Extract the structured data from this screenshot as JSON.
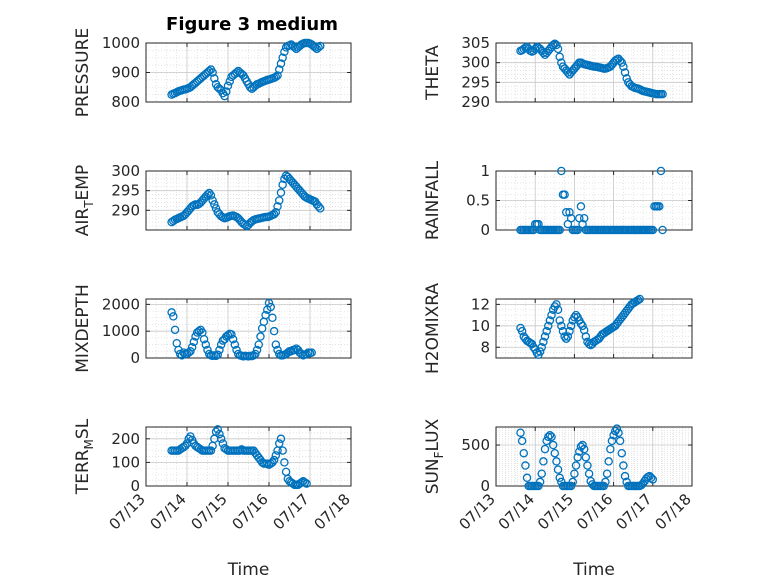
{
  "title": "Figure 3 medium",
  "xlabel": "Time",
  "date_ticks": [
    "07/13",
    "07/14",
    "07/15",
    "07/16",
    "07/17",
    "07/18"
  ],
  "marker_color": "#0072BD",
  "chart_data": [
    {
      "type": "scatter",
      "id": "pressure",
      "ylabel": "PRESSURE",
      "ylim": [
        800,
        1000
      ],
      "yticks": [
        800,
        900,
        1000
      ],
      "xlim": [
        "07/13",
        "07/18"
      ],
      "x_start": "07/13 15:00",
      "x_step_hours": 1,
      "values": [
        825,
        828,
        830,
        833,
        836,
        838,
        840,
        842,
        843,
        845,
        847,
        850,
        855,
        860,
        865,
        870,
        875,
        880,
        885,
        890,
        895,
        900,
        905,
        910,
        900,
        880,
        860,
        850,
        845,
        840,
        830,
        820,
        835,
        855,
        870,
        885,
        890,
        895,
        900,
        905,
        900,
        895,
        890,
        880,
        870,
        860,
        850,
        845,
        850,
        855,
        860,
        862,
        865,
        868,
        870,
        872,
        875,
        876,
        878,
        880,
        882,
        885,
        890,
        910,
        930,
        950,
        970,
        985,
        990,
        992,
        995,
        990,
        985,
        980,
        985,
        990,
        995,
        998,
        1000,
        1000,
        1000,
        998,
        995,
        990,
        985,
        980,
        985,
        990
      ]
    },
    {
      "type": "scatter",
      "id": "theta",
      "ylabel": "THETA",
      "ylim": [
        290,
        305
      ],
      "yticks": [
        290,
        295,
        300,
        305
      ],
      "xlim": [
        "07/13",
        "07/18"
      ],
      "x_start": "07/13 15:00",
      "x_step_hours": 1,
      "values": [
        303,
        303.2,
        303.5,
        303.8,
        304,
        303.5,
        303,
        302.8,
        303,
        303.5,
        304,
        303.8,
        303.5,
        303,
        302.5,
        302,
        302.5,
        303,
        303.5,
        304,
        304.5,
        304.8,
        304.5,
        303.5,
        301.5,
        300,
        299,
        298.5,
        298,
        297.5,
        297,
        297.5,
        298,
        298.5,
        299,
        299.5,
        300,
        300,
        299.8,
        299.6,
        299.5,
        299.4,
        299.3,
        299.2,
        299.1,
        299,
        299,
        298.9,
        298.8,
        298.7,
        298.6,
        298.5,
        298.5,
        298.6,
        298.8,
        299,
        299.5,
        300,
        300.5,
        300.8,
        301,
        300.5,
        300,
        299,
        297.5,
        296,
        295,
        294.5,
        294,
        293.8,
        293.6,
        293.5,
        293.4,
        293.2,
        293,
        292.8,
        292.7,
        292.6,
        292.5,
        292.4,
        292.3,
        292.2,
        292.1,
        292,
        292,
        292,
        292,
        292
      ]
    },
    {
      "type": "scatter",
      "id": "air_temp",
      "ylabel": "AIR_TEMP",
      "ylim": [
        285,
        300
      ],
      "yticks": [
        290,
        295,
        300
      ],
      "xlim": [
        "07/13",
        "07/18"
      ],
      "x_start": "07/13 15:00",
      "x_step_hours": 1,
      "values": [
        287,
        287.3,
        287.6,
        287.8,
        288,
        288.2,
        288.4,
        288.6,
        289,
        289.5,
        290,
        290.5,
        291,
        291.3,
        291.5,
        291.4,
        291.6,
        292,
        292.5,
        293,
        293.5,
        294,
        294.4,
        293.8,
        292.5,
        291.5,
        290.5,
        289.5,
        289,
        288.5,
        288.2,
        288,
        288.1,
        288.3,
        288.5,
        288.6,
        288.7,
        288.5,
        288.3,
        288,
        287.5,
        287,
        286.6,
        286.3,
        286,
        286.3,
        286.8,
        287.2,
        287.5,
        287.7,
        287.8,
        287.9,
        288,
        288.1,
        288.2,
        288.3,
        288.3,
        288.4,
        288.6,
        288.8,
        289,
        289.5,
        291,
        292.5,
        294.5,
        296.5,
        298,
        298.8,
        298.5,
        298,
        297.5,
        297,
        296.5,
        296,
        295.5,
        295,
        294.5,
        294,
        293.5,
        293.2,
        293,
        292.8,
        292.6,
        292.4,
        292.2,
        291.5,
        291,
        290.5
      ]
    },
    {
      "type": "scatter",
      "id": "rainfall",
      "ylabel": "RAINFALL",
      "ylim": [
        0,
        1
      ],
      "yticks": [
        0,
        0.5,
        1
      ],
      "xlim": [
        "07/13",
        "07/18"
      ],
      "x_start": "07/13 15:00",
      "x_step_hours": 1,
      "values": [
        0,
        0,
        0,
        0,
        0,
        0,
        0,
        0,
        0,
        0.1,
        0.1,
        0.1,
        0,
        0,
        0,
        0,
        0,
        0,
        0,
        0,
        0,
        0,
        0,
        0,
        0,
        1,
        0.6,
        0.6,
        0.3,
        0.1,
        0.3,
        0.2,
        0,
        0,
        0,
        0,
        0.2,
        0.4,
        0.1,
        0.2,
        0,
        0,
        0,
        0,
        0,
        0,
        0,
        0,
        0,
        0,
        0,
        0,
        0,
        0,
        0,
        0,
        0,
        0,
        0,
        0,
        0,
        0,
        0,
        0,
        0,
        0,
        0,
        0,
        0,
        0,
        0,
        0,
        0,
        0,
        0,
        0,
        0,
        0,
        0,
        0,
        0,
        0,
        0.4,
        0.4,
        0.4,
        0.4,
        1,
        0
      ]
    },
    {
      "type": "scatter",
      "id": "mixdepth",
      "ylabel": "MIXDEPTH",
      "ylim": [
        0,
        2200
      ],
      "yticks": [
        0,
        1000,
        2000
      ],
      "xlim": [
        "07/13",
        "07/18"
      ],
      "x_start": "07/13 15:00",
      "x_step_hours": 1,
      "values": [
        1700,
        1550,
        1050,
        550,
        300,
        150,
        100,
        200,
        150,
        150,
        200,
        250,
        400,
        600,
        800,
        950,
        1000,
        1050,
        950,
        700,
        500,
        300,
        150,
        100,
        80,
        100,
        80,
        120,
        300,
        500,
        650,
        700,
        800,
        850,
        900,
        880,
        700,
        500,
        300,
        150,
        100,
        80,
        60,
        80,
        70,
        60,
        80,
        70,
        100,
        150,
        300,
        500,
        800,
        1100,
        1350,
        1600,
        1800,
        2050,
        1900,
        1500,
        1000,
        500,
        300,
        150,
        100,
        100,
        120,
        150,
        200,
        250,
        250,
        300,
        300,
        350,
        300,
        200,
        150,
        100,
        120,
        150,
        200,
        180,
        200
      ]
    },
    {
      "type": "scatter",
      "id": "h2omixra",
      "ylabel": "H2OMIXRA",
      "ylim": [
        7,
        12.5
      ],
      "yticks": [
        8,
        10,
        12
      ],
      "xlim": [
        "07/13",
        "07/18"
      ],
      "x_start": "07/13 15:00",
      "x_step_hours": 1,
      "values": [
        9.8,
        9.5,
        9,
        8.8,
        8.6,
        8.5,
        8.4,
        8.3,
        8,
        7.8,
        7.5,
        7.3,
        7.6,
        8,
        8.5,
        9,
        9.5,
        10,
        10.5,
        11,
        11.5,
        11.8,
        12,
        11.5,
        10.5,
        10,
        9.5,
        9,
        8.8,
        9,
        9.5,
        10,
        10.5,
        10.8,
        11,
        10.8,
        10.5,
        10.2,
        10,
        9.6,
        9,
        8.5,
        8.3,
        8.2,
        8.3,
        8.5,
        8.6,
        8.7,
        8.8,
        9,
        9.2,
        9.3,
        9.4,
        9.5,
        9.6,
        9.7,
        9.8,
        9.9,
        10,
        10.2,
        10.4,
        10.6,
        10.8,
        11,
        11.2,
        11.4,
        11.6,
        11.8,
        12,
        12.1,
        12.2,
        12.3,
        12.4,
        12.5
      ]
    },
    {
      "type": "scatter",
      "id": "terr_msl",
      "ylabel": "TERR_MSL",
      "ylim": [
        0,
        250
      ],
      "yticks": [
        0,
        100,
        200
      ],
      "xlim": [
        "07/13",
        "07/18"
      ],
      "x_start": "07/13 15:00",
      "x_step_hours": 1,
      "values": [
        150,
        150,
        150,
        150,
        150,
        155,
        160,
        165,
        170,
        180,
        200,
        210,
        195,
        180,
        170,
        165,
        160,
        155,
        150,
        150,
        150,
        150,
        150,
        150,
        170,
        200,
        230,
        240,
        220,
        200,
        180,
        160,
        155,
        150,
        150,
        150,
        150,
        150,
        150,
        150,
        150,
        155,
        150,
        150,
        150,
        150,
        150,
        150,
        150,
        140,
        130,
        120,
        110,
        100,
        95,
        95,
        95,
        90,
        95,
        100,
        110,
        130,
        150,
        180,
        200,
        150,
        100,
        60,
        30,
        20,
        15,
        10,
        5,
        5,
        5,
        10,
        15,
        20,
        15,
        10
      ]
    },
    {
      "type": "scatter",
      "id": "sun_flux",
      "ylabel": "SUN_FLUX",
      "ylim": [
        0,
        720
      ],
      "yticks": [
        0,
        500
      ],
      "xlim": [
        "07/13",
        "07/18"
      ],
      "x_start": "07/13 15:00",
      "x_step_hours": 1,
      "values": [
        650,
        550,
        400,
        250,
        100,
        0,
        0,
        0,
        0,
        0,
        0,
        0,
        50,
        150,
        300,
        450,
        550,
        600,
        620,
        600,
        500,
        400,
        300,
        200,
        100,
        50,
        0,
        0,
        0,
        0,
        0,
        0,
        50,
        150,
        250,
        350,
        420,
        480,
        500,
        450,
        350,
        250,
        150,
        60,
        20,
        0,
        0,
        0,
        0,
        0,
        0,
        0,
        50,
        150,
        300,
        450,
        550,
        620,
        670,
        700,
        650,
        550,
        400,
        250,
        120,
        50,
        0,
        0,
        0,
        0,
        0,
        0,
        0,
        0,
        10,
        30,
        60,
        90,
        110,
        120,
        100,
        80
      ]
    }
  ]
}
